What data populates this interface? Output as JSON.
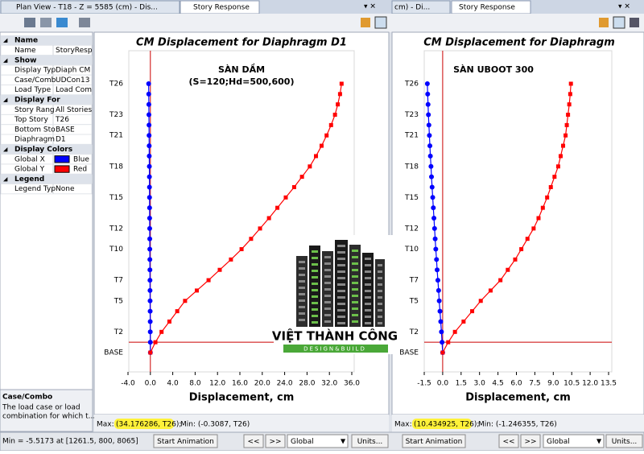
{
  "ui": {
    "tabs": {
      "left": "Plan View - T18 - Z = 5585 (cm) - Dis...",
      "left_active": "Story Response",
      "right": "cm) - Di...",
      "right_active": "Story Response"
    },
    "properties": [
      {
        "title": "Name",
        "rows": [
          [
            "Name",
            "StoryResp"
          ]
        ]
      },
      {
        "title": "Show",
        "rows": [
          [
            "Display Typ",
            "Diaph CM"
          ],
          [
            "Case/Comb",
            "UDCon13"
          ],
          [
            "Load Type",
            "Load Com"
          ]
        ]
      },
      {
        "title": "Display For",
        "rows": [
          [
            "Story Rang",
            "All Stories"
          ],
          [
            "Top Story",
            "T26"
          ],
          [
            "Bottom Sto",
            "BASE"
          ],
          [
            "Diaphragm",
            "D1"
          ]
        ]
      },
      {
        "title": "Display Colors",
        "rows": [
          [
            "Global X",
            "Blue"
          ],
          [
            "Global Y",
            "Red"
          ]
        ]
      },
      {
        "title": "Legend",
        "rows": [
          [
            "Legend Typ",
            "None"
          ]
        ]
      }
    ],
    "description": {
      "title": "Case/Combo",
      "text": [
        "The load case or load",
        "combination for which t..."
      ]
    },
    "info": [
      {
        "max_label": "Max:",
        "max": "(34.176286, T26);",
        "min": "Min: (-0.3087, T26)"
      },
      {
        "max_label": "Max:",
        "max": "(10.434925, T26);",
        "min": "Min: (-1.246355, T26)"
      }
    ],
    "status": "Min = -5.5173 at [1261.5, 800, 8065]",
    "controls": [
      "Start Animation",
      "<<",
      ">>",
      "Global",
      "Units..."
    ],
    "watermark": {
      "name": "VIỆT THÀNH CÔNG",
      "tagline": "DESIGN&BUILD"
    }
  },
  "chart_data": [
    {
      "type": "line",
      "title": "CM Displacement for Diaphragm D1",
      "annotation": [
        "SÀN DẦM",
        "(S=120;Hd=500,600)"
      ],
      "xlabel": "Displacement, cm",
      "categories": [
        "BASE",
        null,
        "T2",
        null,
        null,
        "T5",
        null,
        "T7",
        null,
        null,
        "T10",
        null,
        "T12",
        null,
        null,
        "T15",
        null,
        null,
        "T18",
        null,
        null,
        "T21",
        null,
        "T23",
        null,
        null,
        "T26"
      ],
      "xlim": [
        -4,
        36
      ],
      "xticks": [
        {
          "value": -4,
          "label": "-4.0"
        },
        {
          "value": 0,
          "label": "0.0"
        },
        {
          "value": 4,
          "label": "4.0"
        },
        {
          "value": 8,
          "label": "8.0"
        },
        {
          "value": 12,
          "label": "12.0"
        },
        {
          "value": 16,
          "label": "16.0"
        },
        {
          "value": 20,
          "label": "20.0"
        },
        {
          "value": 24,
          "label": "24.0"
        },
        {
          "value": 28,
          "label": "28.0"
        },
        {
          "value": 32,
          "label": "32.0"
        },
        {
          "value": 36,
          "label": "36.0"
        }
      ],
      "series": [
        {
          "color": "#0000ff",
          "marker": "circle",
          "values": [
            0,
            -0.01,
            -0.02,
            -0.03,
            -0.04,
            -0.05,
            -0.06,
            -0.07,
            -0.08,
            -0.09,
            -0.1,
            -0.11,
            -0.12,
            -0.13,
            -0.14,
            -0.15,
            -0.16,
            -0.17,
            -0.18,
            -0.2,
            -0.21,
            -0.23,
            -0.24,
            -0.26,
            -0.27,
            -0.29,
            -0.3087
          ]
        },
        {
          "color": "#ff0000",
          "marker": "square",
          "values": [
            0,
            0.9,
            2.0,
            3.4,
            4.8,
            6.2,
            8.3,
            10.4,
            12.4,
            14.4,
            16.3,
            18.0,
            19.6,
            21.2,
            22.7,
            24.2,
            25.7,
            27.1,
            28.5,
            29.6,
            30.6,
            31.5,
            32.3,
            33.0,
            33.5,
            33.9,
            34.176286
          ]
        }
      ]
    },
    {
      "type": "line",
      "title": "CM Displacement for Diaphragm",
      "annotation": [
        "SÀN UBOOT 300"
      ],
      "xlabel": "Displacement, cm",
      "categories": [
        "BASE",
        null,
        "T2",
        null,
        null,
        "T5",
        null,
        "T7",
        null,
        null,
        "T10",
        null,
        "T12",
        null,
        null,
        "T15",
        null,
        null,
        "T18",
        null,
        null,
        "T21",
        null,
        "T23",
        null,
        null,
        "T26"
      ],
      "xlim": [
        -1.5,
        13.5
      ],
      "xticks": [
        -1.5,
        {
          "value": 0,
          "label": "0.0"
        },
        1.5,
        {
          "value": 3,
          "label": "3.0"
        },
        4.5,
        {
          "value": 6,
          "label": "6.0"
        },
        7.5,
        {
          "value": 9,
          "label": "9.0"
        },
        10.5,
        {
          "value": 12,
          "label": "12.0"
        },
        13.5
      ],
      "series": [
        {
          "color": "#0000ff",
          "marker": "circle",
          "values": [
            0,
            -0.05,
            -0.1,
            -0.16,
            -0.22,
            -0.28,
            -0.33,
            -0.39,
            -0.45,
            -0.5,
            -0.56,
            -0.61,
            -0.66,
            -0.71,
            -0.76,
            -0.81,
            -0.86,
            -0.91,
            -0.95,
            -1.0,
            -1.04,
            -1.08,
            -1.12,
            -1.16,
            -1.19,
            -1.22,
            -1.246355
          ]
        },
        {
          "color": "#ff0000",
          "marker": "square",
          "values": [
            0,
            0.45,
            1.0,
            1.7,
            2.4,
            3.1,
            3.9,
            4.7,
            5.3,
            5.9,
            6.4,
            6.9,
            7.4,
            7.8,
            8.15,
            8.5,
            8.8,
            9.1,
            9.4,
            9.6,
            9.8,
            10.0,
            10.1,
            10.2,
            10.3,
            10.38,
            10.434925
          ]
        }
      ]
    }
  ]
}
